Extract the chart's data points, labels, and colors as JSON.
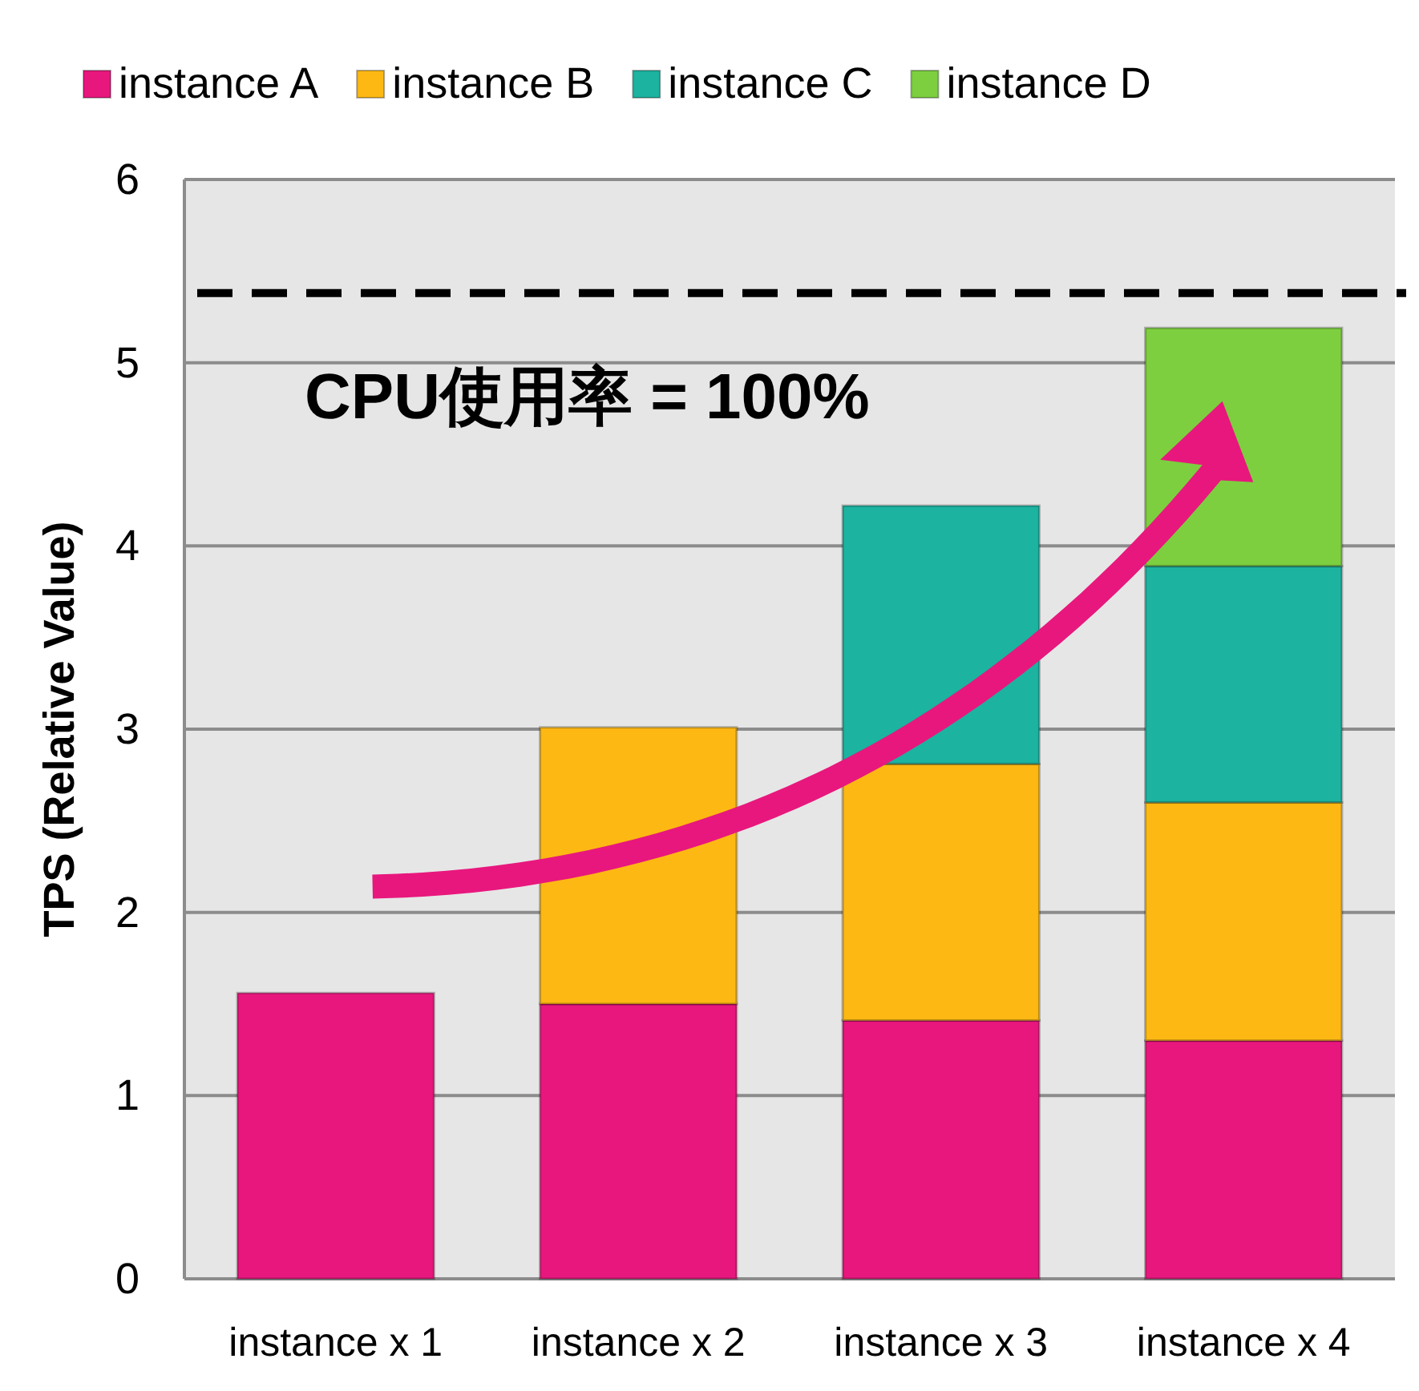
{
  "chart_data": {
    "type": "bar",
    "stacked": true,
    "ylabel": "TPS (Relative Value)",
    "categories": [
      "instance x 1",
      "instance x 2",
      "instance x 3",
      "instance x 4"
    ],
    "series": [
      {
        "name": "instance A",
        "color": "#e8177d",
        "values": [
          1.56,
          1.5,
          1.41,
          1.3
        ]
      },
      {
        "name": "instance B",
        "color": "#fdb813",
        "values": [
          null,
          1.51,
          1.4,
          1.3
        ]
      },
      {
        "name": "instance C",
        "color": "#1cb3a0",
        "values": [
          null,
          null,
          1.41,
          1.29
        ]
      },
      {
        "name": "instance D",
        "color": "#7dcf3f",
        "values": [
          null,
          null,
          null,
          1.3
        ]
      }
    ],
    "ylim": [
      0,
      6
    ],
    "yticks": [
      0,
      1,
      2,
      3,
      4,
      5,
      6
    ],
    "grid": "y",
    "legend": "top",
    "annotations": [
      "CPU使用率 = 100%"
    ],
    "ref_lines": [
      {
        "axis": "y",
        "value": 5.38,
        "color": "#000000",
        "line_style": "dashed"
      }
    ]
  }
}
